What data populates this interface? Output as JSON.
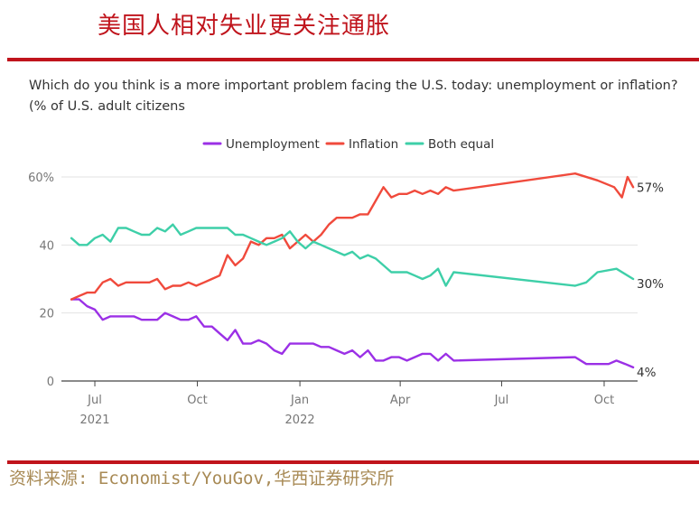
{
  "page_title": "美国人相对失业更关注通胀",
  "source": "资料来源: Economist/YouGov,华西证券研究所",
  "chart_data": {
    "type": "line",
    "title": "Which do you think is a more important problem facing the U.S. today: unemployment or inflation? (% of U.S. adult citizens",
    "x_ticks": [
      {
        "label": "Jul",
        "sub": "2021",
        "date": "2021-07-01"
      },
      {
        "label": "Oct",
        "sub": "",
        "date": "2021-10-01"
      },
      {
        "label": "Jan",
        "sub": "2022",
        "date": "2022-01-01"
      },
      {
        "label": "Apr",
        "sub": "",
        "date": "2022-04-01"
      },
      {
        "label": "Jul",
        "sub": "",
        "date": "2022-07-01"
      },
      {
        "label": "Oct",
        "sub": "",
        "date": "2022-10-01"
      }
    ],
    "y_ticks": [
      {
        "value": 0,
        "label": "0"
      },
      {
        "value": 20,
        "label": "20"
      },
      {
        "value": 40,
        "label": "40"
      },
      {
        "value": 60,
        "label": "60%"
      }
    ],
    "xlim": [
      "2021-06-01",
      "2022-10-31"
    ],
    "ylim": [
      0,
      60
    ],
    "grid": true,
    "legend_position": "top",
    "series": [
      {
        "name": "Unemployment",
        "color": "#9b30e6",
        "end_label": "4%",
        "points": [
          [
            "2021-06-10",
            24
          ],
          [
            "2021-06-17",
            24
          ],
          [
            "2021-06-24",
            22
          ],
          [
            "2021-07-01",
            21
          ],
          [
            "2021-07-08",
            18
          ],
          [
            "2021-07-15",
            19
          ],
          [
            "2021-07-22",
            19
          ],
          [
            "2021-07-29",
            19
          ],
          [
            "2021-08-05",
            19
          ],
          [
            "2021-08-12",
            18
          ],
          [
            "2021-08-19",
            18
          ],
          [
            "2021-08-26",
            18
          ],
          [
            "2021-09-02",
            20
          ],
          [
            "2021-09-09",
            19
          ],
          [
            "2021-09-16",
            18
          ],
          [
            "2021-09-23",
            18
          ],
          [
            "2021-09-30",
            19
          ],
          [
            "2021-10-07",
            16
          ],
          [
            "2021-10-14",
            16
          ],
          [
            "2021-10-21",
            14
          ],
          [
            "2021-10-28",
            12
          ],
          [
            "2021-11-04",
            15
          ],
          [
            "2021-11-11",
            11
          ],
          [
            "2021-11-18",
            11
          ],
          [
            "2021-11-25",
            12
          ],
          [
            "2021-12-02",
            11
          ],
          [
            "2021-12-09",
            9
          ],
          [
            "2021-12-16",
            8
          ],
          [
            "2021-12-23",
            11
          ],
          [
            "2021-12-30",
            11
          ],
          [
            "2022-01-06",
            11
          ],
          [
            "2022-01-13",
            11
          ],
          [
            "2022-01-20",
            10
          ],
          [
            "2022-01-27",
            10
          ],
          [
            "2022-02-03",
            9
          ],
          [
            "2022-02-10",
            8
          ],
          [
            "2022-02-17",
            9
          ],
          [
            "2022-02-24",
            7
          ],
          [
            "2022-03-03",
            9
          ],
          [
            "2022-03-10",
            6
          ],
          [
            "2022-03-17",
            6
          ],
          [
            "2022-03-24",
            7
          ],
          [
            "2022-03-31",
            7
          ],
          [
            "2022-04-07",
            6
          ],
          [
            "2022-04-14",
            7
          ],
          [
            "2022-04-21",
            8
          ],
          [
            "2022-04-28",
            8
          ],
          [
            "2022-05-05",
            6
          ],
          [
            "2022-05-12",
            8
          ],
          [
            "2022-05-19",
            6
          ],
          [
            "2022-09-05",
            7
          ],
          [
            "2022-09-15",
            5
          ],
          [
            "2022-10-05",
            5
          ],
          [
            "2022-10-12",
            6
          ],
          [
            "2022-10-20",
            5
          ],
          [
            "2022-10-27",
            4
          ]
        ]
      },
      {
        "name": "Inflation",
        "color": "#f04a3c",
        "end_label": "57%",
        "points": [
          [
            "2021-06-10",
            24
          ],
          [
            "2021-06-17",
            25
          ],
          [
            "2021-06-24",
            26
          ],
          [
            "2021-07-01",
            26
          ],
          [
            "2021-07-08",
            29
          ],
          [
            "2021-07-15",
            30
          ],
          [
            "2021-07-22",
            28
          ],
          [
            "2021-07-29",
            29
          ],
          [
            "2021-08-05",
            29
          ],
          [
            "2021-08-12",
            29
          ],
          [
            "2021-08-19",
            29
          ],
          [
            "2021-08-26",
            30
          ],
          [
            "2021-09-02",
            27
          ],
          [
            "2021-09-09",
            28
          ],
          [
            "2021-09-16",
            28
          ],
          [
            "2021-09-23",
            29
          ],
          [
            "2021-09-30",
            28
          ],
          [
            "2021-10-07",
            29
          ],
          [
            "2021-10-14",
            30
          ],
          [
            "2021-10-21",
            31
          ],
          [
            "2021-10-28",
            37
          ],
          [
            "2021-11-04",
            34
          ],
          [
            "2021-11-11",
            36
          ],
          [
            "2021-11-18",
            41
          ],
          [
            "2021-11-25",
            40
          ],
          [
            "2021-12-02",
            42
          ],
          [
            "2021-12-09",
            42
          ],
          [
            "2021-12-16",
            43
          ],
          [
            "2021-12-23",
            39
          ],
          [
            "2021-12-30",
            41
          ],
          [
            "2022-01-06",
            43
          ],
          [
            "2022-01-13",
            41
          ],
          [
            "2022-01-20",
            43
          ],
          [
            "2022-01-27",
            46
          ],
          [
            "2022-02-03",
            48
          ],
          [
            "2022-02-10",
            48
          ],
          [
            "2022-02-17",
            48
          ],
          [
            "2022-02-24",
            49
          ],
          [
            "2022-03-03",
            49
          ],
          [
            "2022-03-10",
            53
          ],
          [
            "2022-03-17",
            57
          ],
          [
            "2022-03-24",
            54
          ],
          [
            "2022-03-31",
            55
          ],
          [
            "2022-04-07",
            55
          ],
          [
            "2022-04-14",
            56
          ],
          [
            "2022-04-21",
            55
          ],
          [
            "2022-04-28",
            56
          ],
          [
            "2022-05-05",
            55
          ],
          [
            "2022-05-12",
            57
          ],
          [
            "2022-05-19",
            56
          ],
          [
            "2022-09-05",
            61
          ],
          [
            "2022-09-25",
            59
          ],
          [
            "2022-10-10",
            57
          ],
          [
            "2022-10-17",
            54
          ],
          [
            "2022-10-22",
            60
          ],
          [
            "2022-10-27",
            57
          ]
        ]
      },
      {
        "name": "Both equal",
        "color": "#3ecfa8",
        "end_label": "30%",
        "points": [
          [
            "2021-06-10",
            42
          ],
          [
            "2021-06-17",
            40
          ],
          [
            "2021-06-24",
            40
          ],
          [
            "2021-07-01",
            42
          ],
          [
            "2021-07-08",
            43
          ],
          [
            "2021-07-15",
            41
          ],
          [
            "2021-07-22",
            45
          ],
          [
            "2021-07-29",
            45
          ],
          [
            "2021-08-05",
            44
          ],
          [
            "2021-08-12",
            43
          ],
          [
            "2021-08-19",
            43
          ],
          [
            "2021-08-26",
            45
          ],
          [
            "2021-09-02",
            44
          ],
          [
            "2021-09-09",
            46
          ],
          [
            "2021-09-16",
            43
          ],
          [
            "2021-09-23",
            44
          ],
          [
            "2021-09-30",
            45
          ],
          [
            "2021-10-07",
            45
          ],
          [
            "2021-10-14",
            45
          ],
          [
            "2021-10-21",
            45
          ],
          [
            "2021-10-28",
            45
          ],
          [
            "2021-11-04",
            43
          ],
          [
            "2021-11-11",
            43
          ],
          [
            "2021-11-18",
            42
          ],
          [
            "2021-11-25",
            41
          ],
          [
            "2021-12-02",
            40
          ],
          [
            "2021-12-09",
            41
          ],
          [
            "2021-12-16",
            42
          ],
          [
            "2021-12-23",
            44
          ],
          [
            "2021-12-30",
            41
          ],
          [
            "2022-01-06",
            39
          ],
          [
            "2022-01-13",
            41
          ],
          [
            "2022-01-20",
            40
          ],
          [
            "2022-01-27",
            39
          ],
          [
            "2022-02-03",
            38
          ],
          [
            "2022-02-10",
            37
          ],
          [
            "2022-02-17",
            38
          ],
          [
            "2022-02-24",
            36
          ],
          [
            "2022-03-03",
            37
          ],
          [
            "2022-03-10",
            36
          ],
          [
            "2022-03-17",
            34
          ],
          [
            "2022-03-24",
            32
          ],
          [
            "2022-03-31",
            32
          ],
          [
            "2022-04-07",
            32
          ],
          [
            "2022-04-14",
            31
          ],
          [
            "2022-04-21",
            30
          ],
          [
            "2022-04-28",
            31
          ],
          [
            "2022-05-05",
            33
          ],
          [
            "2022-05-12",
            28
          ],
          [
            "2022-05-19",
            32
          ],
          [
            "2022-09-05",
            28
          ],
          [
            "2022-09-15",
            29
          ],
          [
            "2022-09-25",
            32
          ],
          [
            "2022-10-12",
            33
          ],
          [
            "2022-10-27",
            30
          ]
        ]
      }
    ]
  }
}
